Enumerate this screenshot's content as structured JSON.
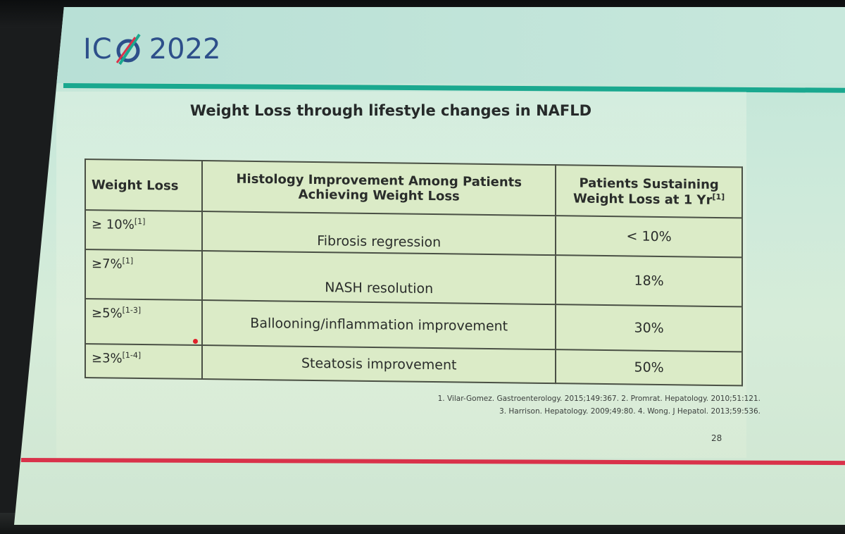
{
  "logo": {
    "letters": "IC",
    "year": "2022",
    "colors": {
      "blue": "#2d4f8a",
      "green": "#1aa88f",
      "red": "#d9324a"
    }
  },
  "slide": {
    "title": "Weight Loss through lifestyle changes in NAFLD",
    "page_number": "28"
  },
  "table": {
    "headers": {
      "col1": "Weight Loss",
      "col2_line1": "Histology Improvement Among Patients",
      "col2_line2": "Achieving Weight Loss",
      "col3_line1": "Patients Sustaining",
      "col3_line2": "Weight Loss at 1 Yr",
      "col3_ref": "[1]"
    },
    "rows": [
      {
        "weight_loss": "≥ 10%",
        "ref": "[1]",
        "histology": "Fibrosis regression",
        "sustaining": "< 10%"
      },
      {
        "weight_loss": "≥7%",
        "ref": "[1]",
        "histology": "NASH resolution",
        "sustaining": "18%"
      },
      {
        "weight_loss": "≥5%",
        "ref": "[1-3]",
        "histology": "Ballooning/inflammation improvement",
        "sustaining": "30%"
      },
      {
        "weight_loss": "≥3%",
        "ref": "[1-4]",
        "histology": "Steatosis improvement",
        "sustaining": "50%"
      }
    ]
  },
  "references": {
    "line1": "1. Vilar-Gomez. Gastroenterology. 2015;149:367. 2. Promrat. Hepatology. 2010;51:121.",
    "line2": "3. Harrison. Hepatology. 2009;49:80. 4. Wong. J Hepatol. 2013;59:536."
  }
}
